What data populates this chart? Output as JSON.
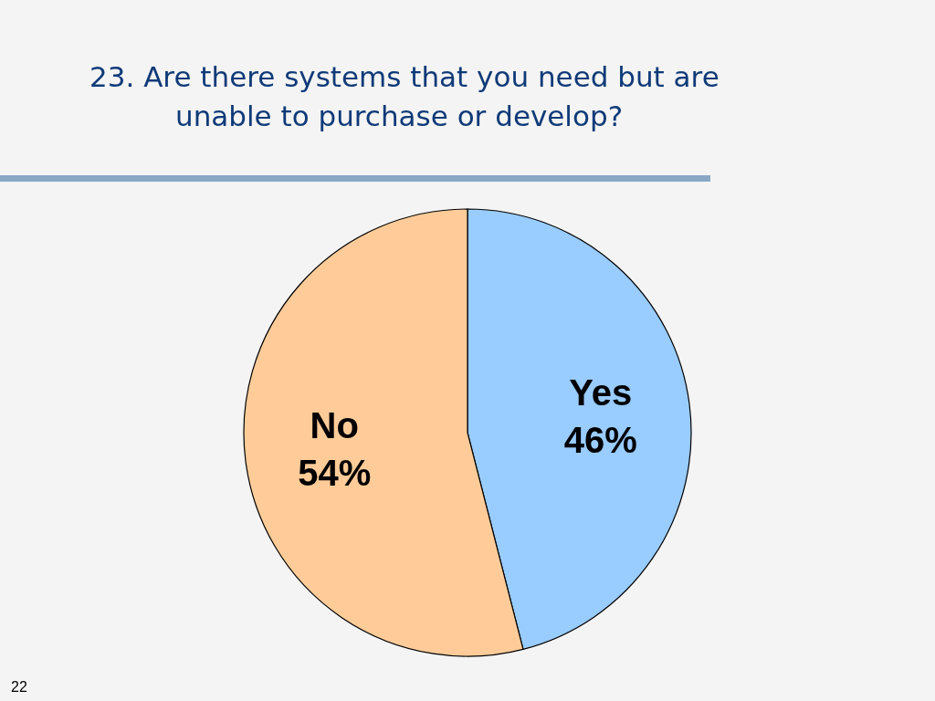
{
  "chart_data": {
    "type": "pie",
    "title": "23.  Are there systems that you need but are unable to purchase or develop?",
    "categories": [
      "Yes",
      "No"
    ],
    "values": [
      46,
      54
    ],
    "colors": [
      "#99ccff",
      "#ffcc99"
    ],
    "value_labels": [
      "46%",
      "54%"
    ],
    "legend": false,
    "annotations": [
      "22"
    ]
  }
}
